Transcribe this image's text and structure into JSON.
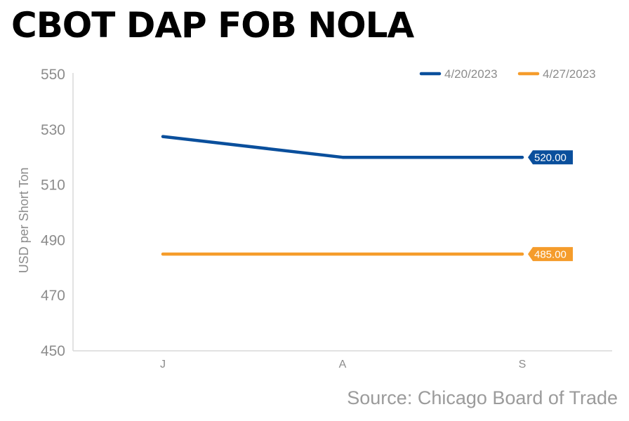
{
  "title": "CBOT DAP FOB NOLA",
  "source": "Source: Chicago Board of Trade",
  "colors": {
    "series_1": "#0a4f9c",
    "series_2": "#f59c2b",
    "axis_text": "#8c8c8c",
    "axis_line": "#d9d9d9"
  },
  "chart_data": {
    "type": "line",
    "categories": [
      "J",
      "A",
      "S"
    ],
    "series": [
      {
        "name": "4/20/2023",
        "values": [
          527.5,
          520,
          520
        ],
        "end_label": "520.00"
      },
      {
        "name": "4/27/2023",
        "values": [
          485,
          485,
          485
        ],
        "end_label": "485.00"
      }
    ],
    "ylabel": "USD per Short Ton",
    "xlabel": "",
    "ylim": [
      450,
      550
    ],
    "yticks": [
      550,
      530,
      510,
      490,
      470,
      450
    ],
    "grid": false,
    "legend": "top-right"
  }
}
